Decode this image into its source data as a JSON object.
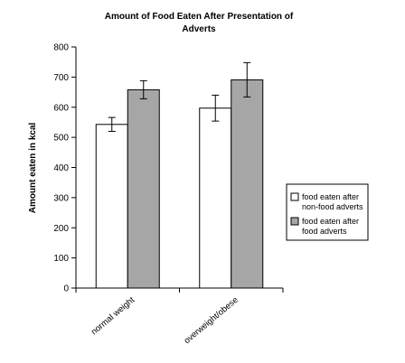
{
  "chart_data": {
    "type": "bar",
    "title_line1": "Amount of Food Eaten After Presentation of",
    "title_line2": "Adverts",
    "ylabel": "Amount eaten in kcal",
    "xlabel": "",
    "ylim": [
      0,
      800
    ],
    "yticks": [
      0,
      100,
      200,
      300,
      400,
      500,
      600,
      700,
      800
    ],
    "grid": false,
    "legend_position": "right",
    "categories": [
      "normal weight",
      "overweight/obese"
    ],
    "series": [
      {
        "name_line1": "food eaten after",
        "name_line2": "non-food adverts",
        "color": "#ffffff",
        "values": [
          543,
          597
        ],
        "error": [
          23,
          43
        ]
      },
      {
        "name_line1": "food eaten after",
        "name_line2": "food adverts",
        "color": "#a6a6a6",
        "values": [
          658,
          691
        ],
        "error": [
          30,
          57
        ]
      }
    ]
  }
}
